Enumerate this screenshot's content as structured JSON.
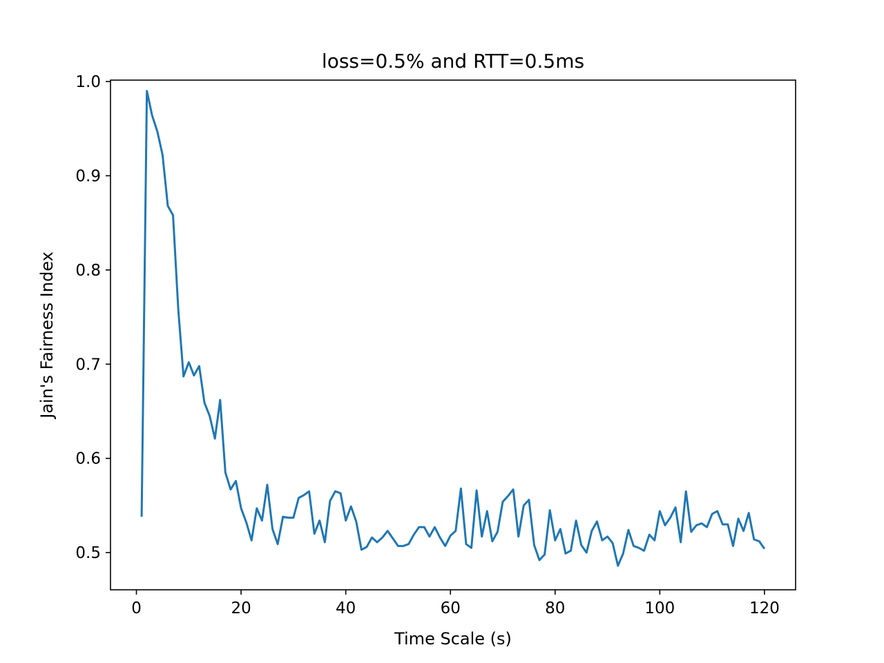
{
  "chart_data": {
    "type": "line",
    "title": "loss=0.5% and RTT=0.5ms",
    "xlabel": "Time Scale (s)",
    "ylabel": "Jain's Fairness Index",
    "xlim": [
      -4.95,
      125.95
    ],
    "ylim": [
      0.4605,
      1.0015
    ],
    "xticks": [
      0,
      20,
      40,
      60,
      80,
      100,
      120
    ],
    "xtick_labels": [
      "0",
      "20",
      "40",
      "60",
      "80",
      "100",
      "120"
    ],
    "yticks": [
      0.5,
      0.6,
      0.7,
      0.8,
      0.9,
      1.0
    ],
    "ytick_labels": [
      "0.5",
      "0.6",
      "0.7",
      "0.8",
      "0.9",
      "1.0"
    ],
    "grid": false,
    "legend": "none",
    "line_color": "#1f77b4",
    "series": [
      {
        "x": [
          1,
          2,
          3,
          4,
          5,
          6,
          7,
          8,
          9,
          10,
          11,
          12,
          13,
          14,
          15,
          16,
          17,
          18,
          19,
          20,
          21,
          22,
          23,
          24,
          25,
          26,
          27,
          28,
          29,
          30,
          31,
          32,
          33,
          34,
          35,
          36,
          37,
          38,
          39,
          40,
          41,
          42,
          43,
          44,
          45,
          46,
          47,
          48,
          49,
          50,
          51,
          52,
          53,
          54,
          55,
          56,
          57,
          58,
          59,
          60,
          61,
          62,
          63,
          64,
          65,
          66,
          67,
          68,
          69,
          70,
          71,
          72,
          73,
          74,
          75,
          76,
          77,
          78,
          79,
          80,
          81,
          82,
          83,
          84,
          85,
          86,
          87,
          88,
          89,
          90,
          91,
          92,
          93,
          94,
          95,
          96,
          97,
          98,
          99,
          100,
          101,
          102,
          103,
          104,
          105,
          106,
          107,
          108,
          109,
          110,
          111,
          112,
          113,
          114,
          115,
          116,
          117,
          118,
          119,
          120
        ],
        "values": [
          0.538,
          0.99,
          0.964,
          0.947,
          0.922,
          0.868,
          0.858,
          0.758,
          0.687,
          0.702,
          0.688,
          0.698,
          0.659,
          0.645,
          0.621,
          0.662,
          0.585,
          0.567,
          0.576,
          0.547,
          0.532,
          0.513,
          0.547,
          0.534,
          0.572,
          0.525,
          0.509,
          0.538,
          0.537,
          0.537,
          0.558,
          0.561,
          0.565,
          0.52,
          0.534,
          0.511,
          0.555,
          0.565,
          0.563,
          0.534,
          0.549,
          0.533,
          0.503,
          0.506,
          0.516,
          0.511,
          0.516,
          0.523,
          0.515,
          0.507,
          0.507,
          0.509,
          0.519,
          0.527,
          0.527,
          0.517,
          0.527,
          0.516,
          0.507,
          0.518,
          0.523,
          0.568,
          0.509,
          0.505,
          0.566,
          0.517,
          0.544,
          0.512,
          0.522,
          0.554,
          0.56,
          0.567,
          0.517,
          0.55,
          0.556,
          0.508,
          0.492,
          0.498,
          0.545,
          0.513,
          0.525,
          0.499,
          0.502,
          0.534,
          0.508,
          0.5,
          0.523,
          0.533,
          0.513,
          0.517,
          0.51,
          0.486,
          0.499,
          0.524,
          0.507,
          0.505,
          0.502,
          0.519,
          0.513,
          0.544,
          0.529,
          0.537,
          0.548,
          0.511,
          0.565,
          0.522,
          0.529,
          0.531,
          0.527,
          0.541,
          0.544,
          0.53,
          0.53,
          0.507,
          0.536,
          0.523,
          0.542,
          0.514,
          0.512,
          0.504
        ]
      }
    ]
  }
}
